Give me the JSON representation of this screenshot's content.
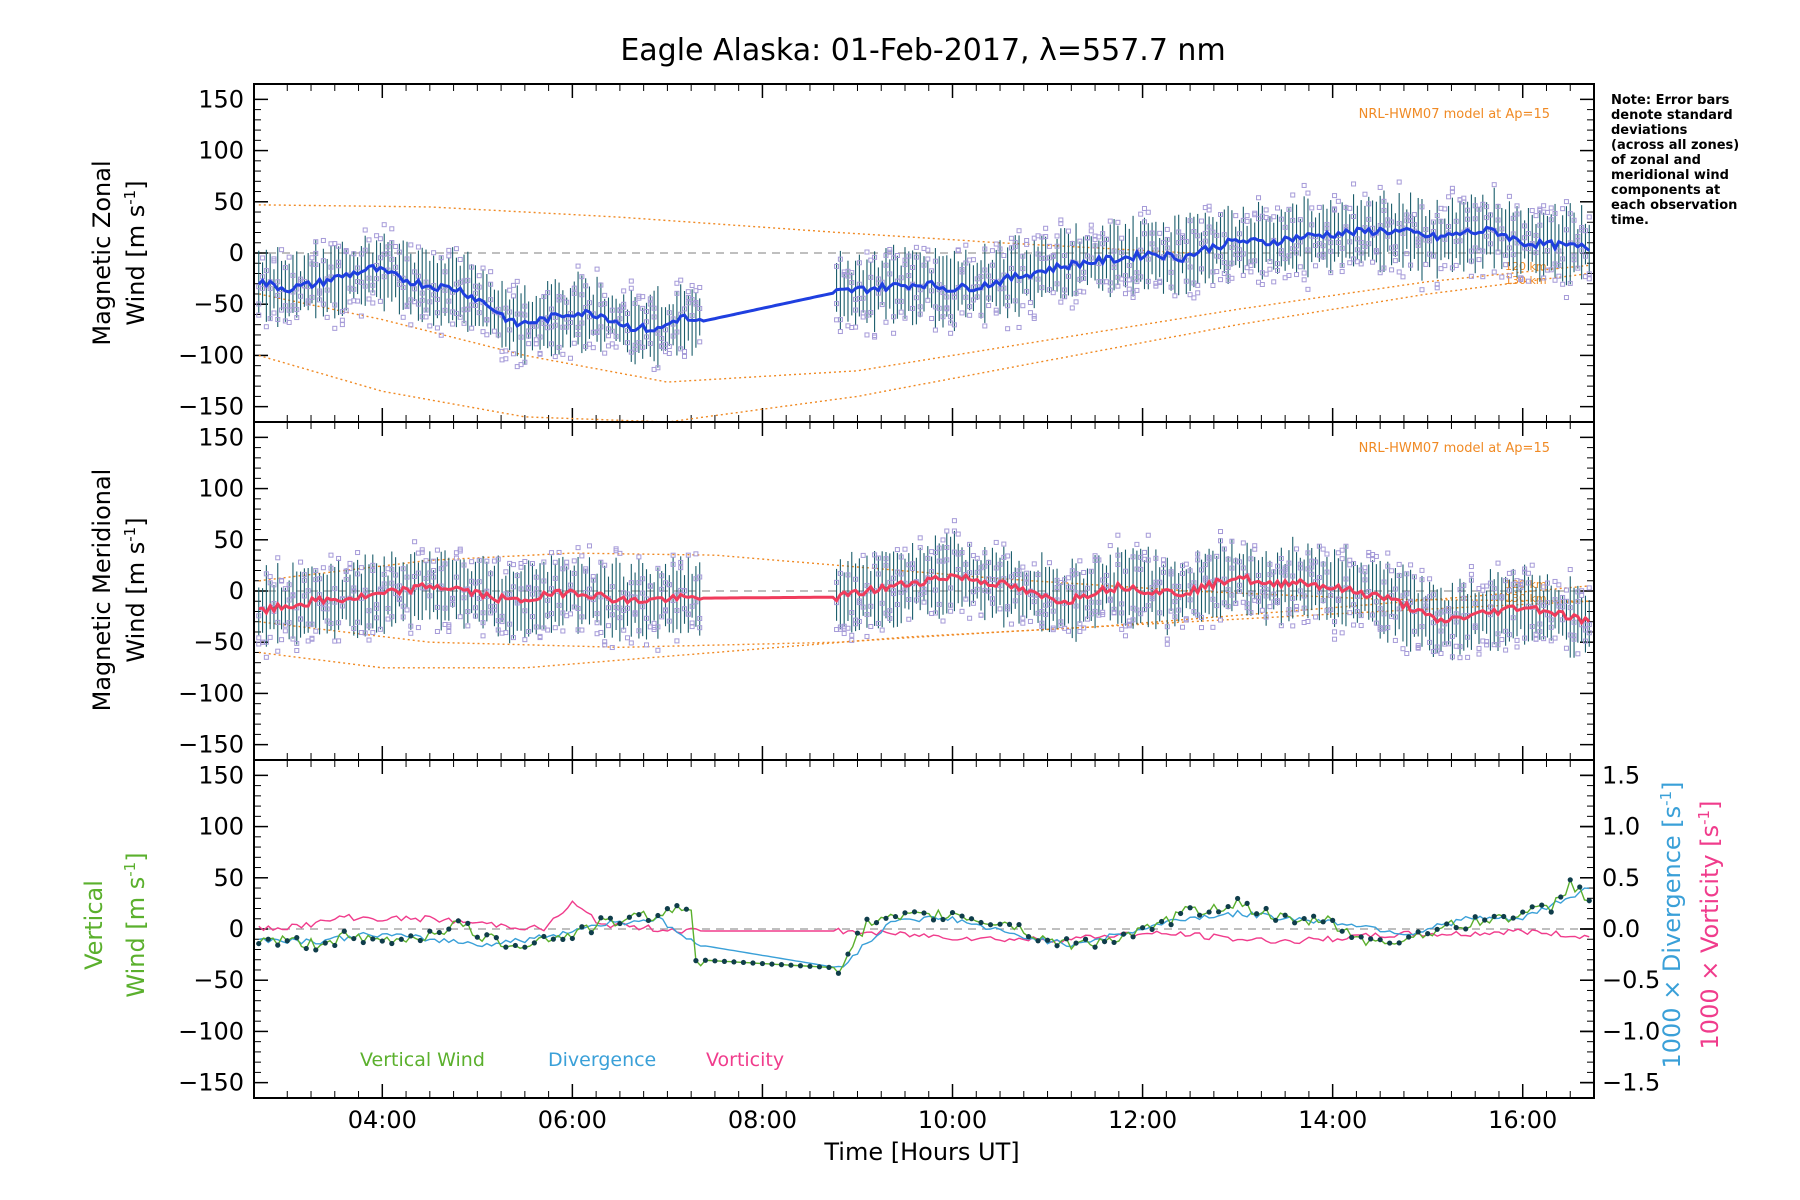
{
  "title": "Eagle Alaska: 01-Feb-2017, λ=557.7 nm",
  "note_lines": [
    "Note: Error bars",
    "denote standard",
    "deviations",
    "(across all zones)",
    "of zonal and",
    "meridional wind",
    "components at",
    "each observation",
    "time."
  ],
  "colors": {
    "zonal": "#1f3fe0",
    "zonal_light": "#3aa8d8",
    "meridional": "#f03c5c",
    "vertical": "#5bb02d",
    "divergence": "#3aa0d8",
    "vorticity": "#f03c8c",
    "model": "#f08a24",
    "scatter": "#a59ad8",
    "errorbar": "#1a5d6b"
  },
  "chart_data": [
    {
      "type": "line",
      "panel": "zonal",
      "ylabel_line1": "Magnetic Zonal",
      "ylabel_line2": "Wind [m s",
      "ylabel_sup": "-1",
      "ylabel_end": "]",
      "ylim": [
        -165,
        165
      ],
      "yticks": [
        -150,
        -100,
        -50,
        0,
        50,
        100,
        150
      ],
      "model_label": "NRL-HWM07 model at Ap=15",
      "altitude_labels": [
        "120 km",
        "130 km"
      ],
      "series": [
        {
          "key": "zonal_wind",
          "x": [
            2.7,
            3.0,
            3.3,
            3.6,
            3.9,
            4.2,
            4.5,
            4.8,
            5.1,
            5.4,
            5.7,
            6.0,
            6.3,
            6.6,
            6.9,
            7.15,
            7.3,
            8.8,
            9.1,
            9.4,
            9.7,
            10.0,
            10.3,
            10.6,
            10.9,
            11.2,
            11.5,
            11.8,
            12.1,
            12.4,
            12.7,
            13.0,
            13.3,
            13.6,
            13.9,
            14.2,
            14.5,
            14.8,
            15.1,
            15.4,
            15.7,
            16.0,
            16.3,
            16.7
          ],
          "y": [
            -28,
            -35,
            -30,
            -22,
            -15,
            -25,
            -32,
            -35,
            -50,
            -70,
            -65,
            -58,
            -60,
            -72,
            -75,
            -62,
            -68,
            -38,
            -35,
            -32,
            -30,
            -35,
            -32,
            -25,
            -18,
            -12,
            -8,
            -5,
            0,
            -5,
            5,
            12,
            10,
            15,
            18,
            20,
            22,
            20,
            15,
            20,
            22,
            10,
            8,
            5
          ]
        }
      ],
      "model_curves": [
        {
          "x": [
            2.7,
            4.5,
            6.5,
            8.8,
            10.5,
            12.5
          ],
          "y": [
            47,
            45,
            35,
            20,
            10,
            0
          ]
        },
        {
          "x": [
            2.7,
            4.0,
            5.5,
            7.0,
            9.0,
            11.0,
            13.0,
            15.0,
            16.7
          ],
          "y": [
            -40,
            -65,
            -100,
            -126,
            -115,
            -85,
            -55,
            -28,
            -12
          ]
        },
        {
          "x": [
            2.7,
            4.0,
            5.5,
            7.0,
            9.0,
            11.0,
            13.0,
            15.0,
            16.7
          ],
          "y": [
            -100,
            -135,
            -160,
            -165,
            -140,
            -105,
            -70,
            -40,
            -20
          ]
        }
      ]
    },
    {
      "type": "line",
      "panel": "meridional",
      "ylabel_line1": "Magnetic Meridional",
      "ylabel_line2": "Wind [m s",
      "ylabel_sup": "-1",
      "ylabel_end": "]",
      "ylim": [
        -165,
        165
      ],
      "yticks": [
        -150,
        -100,
        -50,
        0,
        50,
        100,
        150
      ],
      "model_label": "NRL-HWM07 model at Ap=15",
      "altitude_labels": [
        "120 km",
        "130 km"
      ],
      "series": [
        {
          "key": "meridional_wind",
          "x": [
            2.7,
            3.0,
            3.3,
            3.6,
            3.9,
            4.2,
            4.5,
            4.8,
            5.1,
            5.4,
            5.7,
            6.0,
            6.3,
            6.6,
            6.9,
            7.3,
            8.8,
            9.1,
            9.4,
            9.7,
            10.0,
            10.3,
            10.6,
            10.9,
            11.2,
            11.5,
            11.8,
            12.1,
            12.4,
            12.7,
            13.0,
            13.3,
            13.6,
            13.9,
            14.2,
            14.5,
            14.8,
            15.1,
            15.4,
            15.7,
            16.0,
            16.3,
            16.7
          ],
          "y": [
            -20,
            -15,
            -10,
            -8,
            -5,
            0,
            5,
            2,
            -5,
            -10,
            -5,
            0,
            -5,
            -10,
            -8,
            -7,
            -6,
            0,
            5,
            10,
            15,
            10,
            5,
            -5,
            -10,
            0,
            5,
            0,
            -2,
            5,
            15,
            5,
            10,
            5,
            0,
            -5,
            -15,
            -30,
            -25,
            -20,
            -15,
            -20,
            -30
          ]
        }
      ],
      "model_curves": [
        {
          "x": [
            2.7,
            4.5,
            6.0,
            7.5,
            8.8,
            10.5,
            12.5,
            14.5,
            16.7
          ],
          "y": [
            10,
            30,
            37,
            35,
            25,
            12,
            0,
            -8,
            -10
          ]
        },
        {
          "x": [
            2.7,
            4.0,
            5.5,
            7.5,
            9.5,
            11.5,
            13.5,
            15.5,
            16.7
          ],
          "y": [
            -60,
            -75,
            -75,
            -60,
            -45,
            -35,
            -20,
            -5,
            5
          ]
        },
        {
          "x": [
            2.7,
            4.5,
            6.5,
            8.8,
            10.5,
            12.5,
            14.5,
            16.7
          ],
          "y": [
            -30,
            -50,
            -55,
            -50,
            -40,
            -30,
            -20,
            -10
          ]
        }
      ]
    },
    {
      "type": "line",
      "panel": "vertical",
      "ylabel_line1": "Vertical",
      "ylabel_line2_a": "Wind ",
      "ylabel_line2_b": "[m s",
      "ylabel_sup": "-1",
      "ylabel_end": "]",
      "ylim": [
        -165,
        165
      ],
      "yticks": [
        -150,
        -100,
        -50,
        0,
        50,
        100,
        150
      ],
      "y2lim": [
        -1.65,
        1.65
      ],
      "y2ticks": [
        -1.5,
        -1.0,
        -0.5,
        0.0,
        0.5,
        1.0,
        1.5
      ],
      "y2tick_labels": [
        "−1.5",
        "−1.0",
        "−0.5",
        "0.0",
        "0.5",
        "1.0",
        "1.5"
      ],
      "y2label_divergence_a": "1000 × Divergence [s",
      "y2label_vorticity_a": "1000 × Vorticity [s",
      "y2label_sup": "-1",
      "y2label_end": "]",
      "legend": [
        "Vertical Wind",
        "Divergence",
        "Vorticity"
      ],
      "series": [
        {
          "name": "Vertical Wind",
          "key": "vertical_wind",
          "x": [
            2.7,
            3.0,
            3.3,
            3.6,
            3.9,
            4.2,
            4.5,
            4.8,
            5.1,
            5.4,
            5.7,
            6.0,
            6.3,
            6.6,
            6.9,
            7.25,
            7.3,
            8.8,
            9.1,
            9.4,
            9.7,
            10.0,
            10.3,
            10.6,
            10.9,
            11.2,
            11.5,
            11.8,
            12.1,
            12.4,
            12.7,
            13.0,
            13.3,
            13.6,
            13.9,
            14.2,
            14.5,
            14.8,
            15.1,
            15.4,
            15.7,
            16.0,
            16.3,
            16.5,
            16.7
          ],
          "y": [
            -10,
            -12,
            -15,
            -8,
            -12,
            -10,
            -5,
            5,
            -10,
            -15,
            -10,
            -5,
            5,
            10,
            15,
            20,
            -30,
            -38,
            5,
            10,
            12,
            15,
            8,
            5,
            -8,
            -15,
            -12,
            -8,
            0,
            15,
            20,
            25,
            15,
            5,
            10,
            -5,
            -15,
            -8,
            0,
            5,
            10,
            15,
            20,
            45,
            30
          ]
        },
        {
          "name": "Divergence",
          "key": "divergence",
          "x": [
            2.7,
            3.3,
            3.9,
            4.5,
            5.1,
            5.7,
            6.3,
            6.9,
            7.3,
            8.8,
            9.4,
            10.0,
            10.6,
            11.2,
            11.8,
            12.4,
            13.0,
            13.6,
            14.2,
            14.8,
            15.4,
            16.0,
            16.7
          ],
          "y": [
            -0.1,
            -0.12,
            -0.05,
            -0.1,
            -0.15,
            -0.08,
            0.05,
            0.1,
            -0.15,
            -0.38,
            0.1,
            0.1,
            -0.05,
            -0.15,
            -0.05,
            0.1,
            0.15,
            0.1,
            0.05,
            -0.05,
            0.1,
            0.1,
            0.4
          ]
        },
        {
          "name": "Vorticity",
          "key": "vorticity",
          "x": [
            2.7,
            3.3,
            3.6,
            3.9,
            4.5,
            5.1,
            5.7,
            6.0,
            6.3,
            6.9,
            7.3,
            8.8,
            9.4,
            10.0,
            10.6,
            11.2,
            11.8,
            12.4,
            13.0,
            13.6,
            14.2,
            14.8,
            15.4,
            16.0,
            16.7
          ],
          "y": [
            0.0,
            0.05,
            0.12,
            0.1,
            0.1,
            0.05,
            0.0,
            0.25,
            0.05,
            0.0,
            -0.02,
            -0.02,
            -0.05,
            -0.08,
            -0.1,
            -0.1,
            -0.05,
            -0.05,
            -0.1,
            -0.12,
            -0.08,
            -0.05,
            -0.05,
            -0.02,
            -0.08
          ]
        }
      ]
    }
  ],
  "x_axis": {
    "xlim": [
      2.65,
      16.75
    ],
    "ticks": [
      4,
      6,
      8,
      10,
      12,
      14,
      16
    ],
    "tick_labels": [
      "04:00",
      "06:00",
      "08:00",
      "10:00",
      "12:00",
      "14:00",
      "16:00"
    ],
    "label": "Time [Hours UT]"
  }
}
